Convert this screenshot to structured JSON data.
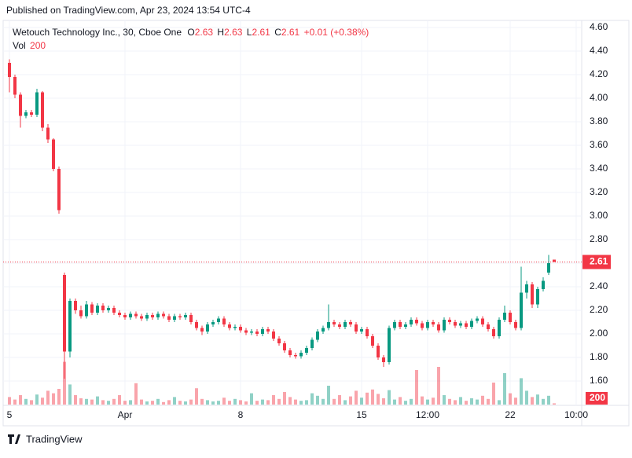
{
  "published": "Published on TradingView.com, Apr 23, 2024 13:54 UTC-4",
  "brand": "TradingView",
  "chart_data": {
    "type": "candlestick",
    "symbol": "Wetouch Technology Inc., 30, Cboe One",
    "labels": {
      "open": "O",
      "high": "H",
      "low": "L",
      "close": "C",
      "volume": "Vol"
    },
    "change": "+0.01 (+0.38%)",
    "up_color": "#089981",
    "down_color": "#f23645",
    "ylim": [
      1.5,
      4.7
    ],
    "yticks": [
      {
        "value": 1.6,
        "label": "1.60"
      },
      {
        "value": 1.8,
        "label": "1.80"
      },
      {
        "value": 2.0,
        "label": "2.00"
      },
      {
        "value": 2.2,
        "label": "2.20"
      },
      {
        "value": 2.4,
        "label": "2.40"
      },
      {
        "value": 2.6,
        "label": "2.60"
      },
      {
        "value": 2.8,
        "label": "2.80"
      },
      {
        "value": 3.0,
        "label": "3.00"
      },
      {
        "value": 3.2,
        "label": "3.20"
      },
      {
        "value": 3.4,
        "label": "3.40"
      },
      {
        "value": 3.6,
        "label": "3.60"
      },
      {
        "value": 3.8,
        "label": "3.80"
      },
      {
        "value": 4.0,
        "label": "4.00"
      },
      {
        "value": 4.2,
        "label": "4.20"
      },
      {
        "value": 4.4,
        "label": "4.40"
      },
      {
        "value": 4.6,
        "label": "4.60"
      }
    ],
    "xticks": [
      {
        "value": 0,
        "label": "5"
      },
      {
        "value": 21,
        "label": "Apr"
      },
      {
        "value": 42,
        "label": "8"
      },
      {
        "value": 64,
        "label": "15"
      },
      {
        "value": 76,
        "label": "12:00"
      },
      {
        "value": 91,
        "label": "22"
      },
      {
        "value": 103,
        "label": "10:00"
      }
    ],
    "vlim": [
      0,
      10000
    ],
    "open": [
      4.3,
      4.18,
      4.03,
      3.85,
      3.88,
      3.86,
      4.05,
      3.75,
      3.65,
      3.4,
      2.5,
      1.85,
      2.28,
      2.2,
      2.15,
      2.25,
      2.18,
      2.24,
      2.2,
      2.22,
      2.18,
      2.16,
      2.14,
      2.17,
      2.15,
      2.13,
      2.16,
      2.14,
      2.17,
      2.15,
      2.12,
      2.15,
      2.14,
      2.16,
      2.1,
      2.05,
      2.02,
      2.08,
      2.1,
      2.13,
      2.08,
      2.05,
      2.06,
      2.03,
      2.01,
      2.02,
      2.0,
      2.04,
      2.02,
      1.96,
      1.92,
      1.86,
      1.82,
      1.81,
      1.84,
      1.88,
      1.95,
      2.02,
      2.05,
      2.1,
      2.08,
      2.06,
      2.1,
      2.08,
      2.02,
      2.04,
      1.98,
      1.9,
      1.8,
      1.76,
      2.05,
      2.1,
      2.06,
      2.08,
      2.12,
      2.09,
      2.05,
      2.1,
      2.08,
      2.03,
      2.12,
      2.1,
      2.07,
      2.09,
      2.06,
      2.11,
      2.13,
      2.08,
      2.04,
      1.98,
      2.12,
      2.18,
      2.1,
      2.05,
      2.35,
      2.42,
      2.25,
      2.38,
      2.52,
      2.63
    ],
    "high": [
      4.33,
      4.2,
      4.05,
      3.9,
      3.9,
      4.08,
      4.06,
      3.78,
      3.66,
      3.42,
      2.52,
      2.3,
      2.3,
      2.24,
      2.28,
      2.27,
      2.26,
      2.26,
      2.24,
      2.24,
      2.2,
      2.18,
      2.19,
      2.19,
      2.17,
      2.18,
      2.18,
      2.19,
      2.19,
      2.17,
      2.17,
      2.17,
      2.18,
      2.18,
      2.12,
      2.07,
      2.1,
      2.12,
      2.15,
      2.15,
      2.1,
      2.08,
      2.08,
      2.05,
      2.04,
      2.04,
      2.06,
      2.06,
      2.04,
      1.98,
      1.94,
      1.88,
      1.84,
      1.86,
      1.9,
      1.97,
      2.04,
      2.07,
      2.25,
      2.12,
      2.1,
      2.12,
      2.12,
      2.1,
      2.06,
      2.06,
      2.0,
      1.92,
      1.82,
      2.07,
      2.12,
      2.12,
      2.1,
      2.14,
      2.14,
      2.11,
      2.12,
      2.12,
      2.1,
      2.14,
      2.14,
      2.12,
      2.11,
      2.11,
      2.13,
      2.15,
      2.15,
      2.1,
      2.06,
      2.14,
      2.24,
      2.2,
      2.12,
      2.57,
      2.45,
      2.44,
      2.4,
      2.48,
      2.67,
      2.63
    ],
    "low": [
      4.05,
      4.0,
      3.75,
      3.83,
      3.84,
      3.84,
      3.72,
      3.62,
      3.38,
      3.02,
      1.62,
      1.8,
      2.17,
      2.13,
      2.13,
      2.16,
      2.16,
      2.18,
      2.18,
      2.16,
      2.14,
      2.12,
      2.12,
      2.13,
      2.11,
      2.11,
      2.12,
      2.12,
      2.13,
      2.1,
      2.1,
      2.12,
      2.12,
      2.08,
      2.03,
      1.99,
      2.0,
      2.06,
      2.08,
      2.06,
      2.03,
      2.03,
      2.01,
      1.99,
      1.99,
      1.98,
      1.98,
      2.0,
      1.94,
      1.9,
      1.84,
      1.8,
      1.79,
      1.79,
      1.82,
      1.86,
      1.93,
      2.0,
      2.03,
      2.06,
      2.04,
      2.04,
      2.06,
      2.0,
      2.0,
      1.96,
      1.88,
      1.78,
      1.72,
      1.74,
      2.03,
      2.04,
      2.04,
      2.06,
      2.07,
      2.03,
      2.03,
      2.06,
      2.01,
      2.01,
      2.08,
      2.05,
      2.05,
      2.04,
      2.04,
      2.09,
      2.06,
      2.02,
      1.96,
      1.96,
      2.1,
      2.08,
      2.03,
      2.03,
      2.3,
      2.22,
      2.22,
      2.36,
      2.5,
      2.61
    ],
    "close": [
      4.18,
      4.03,
      3.85,
      3.88,
      3.86,
      4.05,
      3.75,
      3.65,
      3.4,
      3.05,
      1.85,
      2.28,
      2.2,
      2.15,
      2.25,
      2.18,
      2.24,
      2.2,
      2.22,
      2.18,
      2.16,
      2.14,
      2.17,
      2.15,
      2.13,
      2.16,
      2.14,
      2.17,
      2.15,
      2.12,
      2.15,
      2.14,
      2.16,
      2.1,
      2.05,
      2.02,
      2.08,
      2.1,
      2.13,
      2.08,
      2.05,
      2.06,
      2.03,
      2.01,
      2.02,
      2.0,
      2.04,
      2.02,
      1.96,
      1.92,
      1.86,
      1.82,
      1.81,
      1.84,
      1.88,
      1.95,
      2.02,
      2.05,
      2.1,
      2.08,
      2.06,
      2.1,
      2.08,
      2.02,
      2.04,
      1.98,
      1.9,
      1.8,
      1.76,
      2.05,
      2.1,
      2.06,
      2.08,
      2.12,
      2.09,
      2.05,
      2.1,
      2.08,
      2.03,
      2.12,
      2.1,
      2.07,
      2.09,
      2.06,
      2.11,
      2.13,
      2.08,
      2.04,
      1.98,
      2.12,
      2.18,
      2.1,
      2.05,
      2.35,
      2.42,
      2.25,
      2.38,
      2.45,
      2.6,
      2.61
    ],
    "volume": [
      1200,
      800,
      1500,
      900,
      700,
      1600,
      1100,
      2200,
      1800,
      2500,
      6800,
      3200,
      1500,
      1000,
      900,
      800,
      1300,
      700,
      600,
      900,
      1500,
      600,
      700,
      3400,
      800,
      500,
      600,
      900,
      400,
      700,
      1200,
      600,
      500,
      800,
      2600,
      900,
      700,
      500,
      600,
      1100,
      600,
      900,
      700,
      500,
      1800,
      600,
      800,
      700,
      1500,
      900,
      2000,
      1200,
      800,
      600,
      700,
      1800,
      1400,
      900,
      3000,
      900,
      1500,
      700,
      1300,
      2200,
      1100,
      1900,
      2400,
      1700,
      1000,
      2300,
      800,
      1200,
      600,
      900,
      5500,
      1300,
      800,
      1100,
      6000,
      1500,
      900,
      700,
      1200,
      600,
      1000,
      800,
      1400,
      900,
      3500,
      700,
      5000,
      1800,
      1100,
      4200,
      2200,
      1200,
      1600,
      900,
      1400,
      200
    ]
  }
}
